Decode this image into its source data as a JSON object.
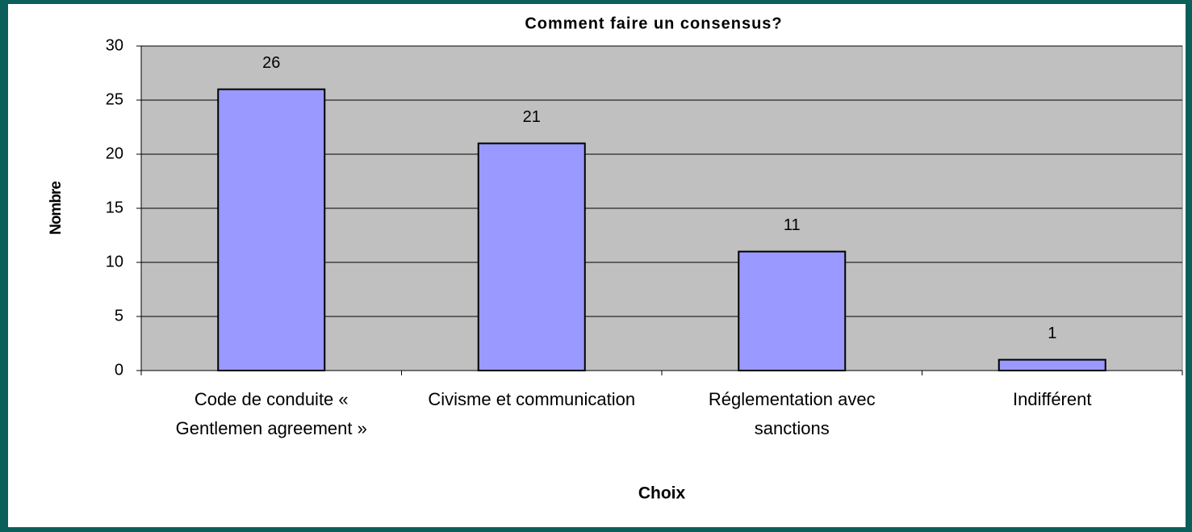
{
  "chart_data": {
    "type": "bar",
    "title": "Comment faire un consensus?",
    "x_label": "Choix",
    "y_label": "Nombre",
    "categories": [
      "Code de conduite « Gentlemen agreement »",
      "Civisme et communication",
      "Réglementation avec sanctions",
      "Indifférent"
    ],
    "values": [
      26,
      21,
      11,
      1
    ],
    "color": "#9999ff",
    "ylim": [
      0,
      30
    ],
    "yticks": [
      0,
      5,
      10,
      15,
      20,
      25,
      30
    ],
    "grid": true
  }
}
